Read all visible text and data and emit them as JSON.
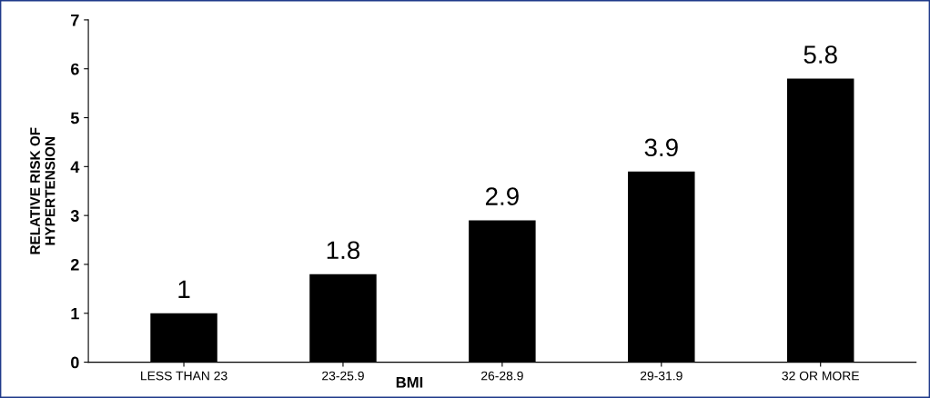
{
  "chart_data": {
    "type": "bar",
    "categories": [
      "LESS THAN 23",
      "23-25.9",
      "26-28.9",
      "29-31.9",
      "32 OR MORE"
    ],
    "values": [
      1,
      1.8,
      2.9,
      3.9,
      5.8
    ],
    "color": "#000000",
    "xlabel": "BMI",
    "ylabel": "RELATIVE RISK OF\nHYPERTENSION",
    "ylim": [
      0,
      7
    ],
    "yticks": [
      0,
      1,
      2,
      3,
      4,
      5,
      6,
      7
    ],
    "data_labels": true,
    "grid": false,
    "legend": false
  }
}
